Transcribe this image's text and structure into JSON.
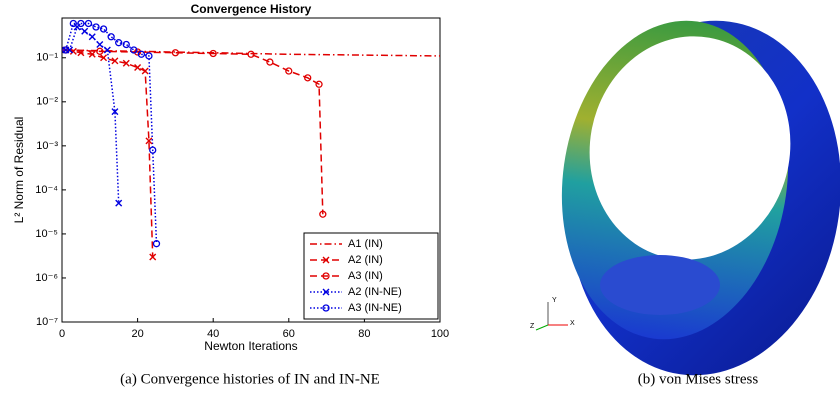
{
  "chart_data": {
    "type": "line",
    "title": "Convergence History",
    "x_label": "Newton Iterations",
    "y_label": "L² Norm of Residual",
    "xlim": [
      0,
      100
    ],
    "xticks": [
      0,
      20,
      40,
      60,
      80,
      100
    ],
    "ylim": [
      1e-07,
      0.8
    ],
    "y_log": true,
    "yticks": [
      {
        "value": 1e-07,
        "label": "10⁻⁷"
      },
      {
        "value": 1e-06,
        "label": "10⁻⁶"
      },
      {
        "value": 1e-05,
        "label": "10⁻⁵"
      },
      {
        "value": 0.0001,
        "label": "10⁻⁴"
      },
      {
        "value": 0.001,
        "label": "10⁻³"
      },
      {
        "value": 0.01,
        "label": "10⁻²"
      },
      {
        "value": 0.1,
        "label": "10⁻¹"
      }
    ],
    "legend": "lower right",
    "series": [
      {
        "name": "A1 (IN)",
        "color": "#e00000",
        "dash": "dashdot",
        "marker": "none",
        "x": [
          0,
          20,
          40,
          60,
          80,
          100
        ],
        "values": [
          0.15,
          0.14,
          0.13,
          0.12,
          0.115,
          0.11
        ]
      },
      {
        "name": "A2 (IN)",
        "color": "#e00000",
        "dash": "dashed",
        "marker": "x",
        "x": [
          1,
          3,
          5,
          8,
          11,
          14,
          17,
          20,
          22,
          23,
          24
        ],
        "values": [
          0.15,
          0.14,
          0.13,
          0.12,
          0.1,
          0.085,
          0.075,
          0.06,
          0.05,
          0.0013,
          3e-06
        ]
      },
      {
        "name": "A3 (IN)",
        "color": "#e00000",
        "dash": "dashed",
        "marker": "o",
        "x": [
          1,
          10,
          20,
          30,
          40,
          50,
          55,
          60,
          65,
          68,
          69
        ],
        "values": [
          0.15,
          0.14,
          0.135,
          0.13,
          0.125,
          0.12,
          0.08,
          0.05,
          0.035,
          0.025,
          2.8e-05
        ]
      },
      {
        "name": "A2 (IN-NE)",
        "color": "#0000e0",
        "dash": "dotted",
        "marker": "x",
        "x": [
          1,
          2,
          4,
          6,
          8,
          10,
          12,
          14,
          15
        ],
        "values": [
          0.15,
          0.15,
          0.5,
          0.4,
          0.3,
          0.2,
          0.15,
          0.006,
          5e-05
        ]
      },
      {
        "name": "A3 (IN-NE)",
        "color": "#0000e0",
        "dash": "dotted",
        "marker": "o",
        "x": [
          1,
          3,
          5,
          7,
          9,
          11,
          13,
          15,
          17,
          19,
          21,
          23,
          24,
          25
        ],
        "values": [
          0.15,
          0.6,
          0.6,
          0.6,
          0.5,
          0.45,
          0.3,
          0.22,
          0.2,
          0.15,
          0.12,
          0.11,
          0.0008,
          6e-06
        ]
      }
    ]
  },
  "image": {
    "axis_labels": [
      "Y",
      "Z",
      "X"
    ]
  },
  "captions": [
    "(a) Convergence histories of IN and IN-NE",
    "(b) von Mises stress"
  ]
}
